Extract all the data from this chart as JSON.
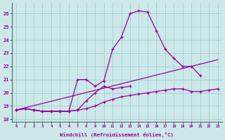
{
  "xlabel": "Windchill (Refroidissement éolien,°C)",
  "background_color": "#cce8e8",
  "line_color": "#990099",
  "x_values": [
    0,
    1,
    2,
    3,
    4,
    5,
    6,
    7,
    8,
    9,
    10,
    11,
    12,
    13,
    14,
    15,
    16,
    17,
    18,
    19,
    20,
    21,
    22,
    23
  ],
  "line_main": [
    18.7,
    18.8,
    18.7,
    18.6,
    18.6,
    18.6,
    18.6,
    21.0,
    21.0,
    20.5,
    20.9,
    23.3,
    24.2,
    26.0,
    26.2,
    26.1,
    24.7,
    23.3,
    22.6,
    22.0,
    22.0,
    21.3,
    null,
    null
  ],
  "line_mid": [
    18.7,
    18.8,
    18.7,
    18.6,
    18.6,
    18.6,
    18.6,
    18.7,
    19.4,
    20.0,
    20.5,
    20.3,
    20.4,
    20.5,
    null,
    null,
    null,
    null,
    null,
    null,
    null,
    null,
    null,
    null
  ],
  "line_flat": [
    18.7,
    18.8,
    18.7,
    18.6,
    18.6,
    18.6,
    18.6,
    18.7,
    18.8,
    19.0,
    19.3,
    19.5,
    19.7,
    19.8,
    19.9,
    20.0,
    20.1,
    20.2,
    20.3,
    20.3,
    20.1,
    20.1,
    20.2,
    20.3
  ],
  "ylim": [
    17.8,
    26.8
  ],
  "xlim": [
    -0.5,
    23.5
  ],
  "yticks": [
    18,
    19,
    20,
    21,
    22,
    23,
    24,
    25,
    26
  ],
  "xticks": [
    0,
    1,
    2,
    3,
    4,
    5,
    6,
    7,
    8,
    9,
    10,
    11,
    12,
    13,
    14,
    15,
    16,
    17,
    18,
    19,
    20,
    21,
    22,
    23
  ],
  "grid_color": "#99cccc",
  "marker": "+"
}
